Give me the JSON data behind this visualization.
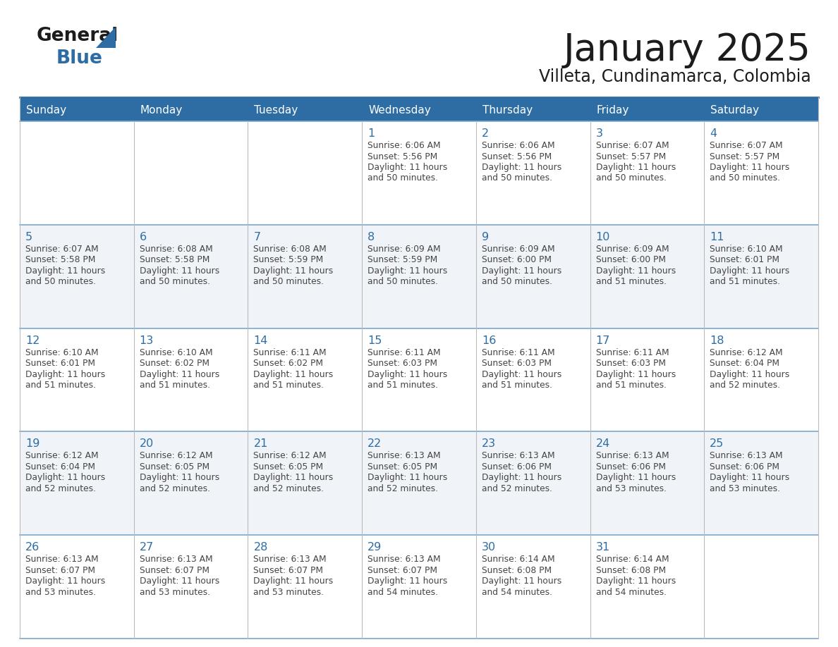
{
  "title": "January 2025",
  "subtitle": "Villeta, Cundinamarca, Colombia",
  "header_bg": "#2E6DA4",
  "header_text_color": "#FFFFFF",
  "cell_bg_even": "#FFFFFF",
  "cell_bg_odd": "#F0F4F8",
  "day_number_color": "#2E6DA4",
  "cell_text_color": "#444444",
  "grid_line_color": "#AAAAAA",
  "header_line_color": "#2E6DA4",
  "days_of_week": [
    "Sunday",
    "Monday",
    "Tuesday",
    "Wednesday",
    "Thursday",
    "Friday",
    "Saturday"
  ],
  "weeks": [
    [
      {
        "day": "",
        "sunrise": "",
        "sunset": "",
        "daylight": ""
      },
      {
        "day": "",
        "sunrise": "",
        "sunset": "",
        "daylight": ""
      },
      {
        "day": "",
        "sunrise": "",
        "sunset": "",
        "daylight": ""
      },
      {
        "day": "1",
        "sunrise": "6:06 AM",
        "sunset": "5:56 PM",
        "daylight": "50 minutes."
      },
      {
        "day": "2",
        "sunrise": "6:06 AM",
        "sunset": "5:56 PM",
        "daylight": "50 minutes."
      },
      {
        "day": "3",
        "sunrise": "6:07 AM",
        "sunset": "5:57 PM",
        "daylight": "50 minutes."
      },
      {
        "day": "4",
        "sunrise": "6:07 AM",
        "sunset": "5:57 PM",
        "daylight": "50 minutes."
      }
    ],
    [
      {
        "day": "5",
        "sunrise": "6:07 AM",
        "sunset": "5:58 PM",
        "daylight": "50 minutes."
      },
      {
        "day": "6",
        "sunrise": "6:08 AM",
        "sunset": "5:58 PM",
        "daylight": "50 minutes."
      },
      {
        "day": "7",
        "sunrise": "6:08 AM",
        "sunset": "5:59 PM",
        "daylight": "50 minutes."
      },
      {
        "day": "8",
        "sunrise": "6:09 AM",
        "sunset": "5:59 PM",
        "daylight": "50 minutes."
      },
      {
        "day": "9",
        "sunrise": "6:09 AM",
        "sunset": "6:00 PM",
        "daylight": "50 minutes."
      },
      {
        "day": "10",
        "sunrise": "6:09 AM",
        "sunset": "6:00 PM",
        "daylight": "51 minutes."
      },
      {
        "day": "11",
        "sunrise": "6:10 AM",
        "sunset": "6:01 PM",
        "daylight": "51 minutes."
      }
    ],
    [
      {
        "day": "12",
        "sunrise": "6:10 AM",
        "sunset": "6:01 PM",
        "daylight": "51 minutes."
      },
      {
        "day": "13",
        "sunrise": "6:10 AM",
        "sunset": "6:02 PM",
        "daylight": "51 minutes."
      },
      {
        "day": "14",
        "sunrise": "6:11 AM",
        "sunset": "6:02 PM",
        "daylight": "51 minutes."
      },
      {
        "day": "15",
        "sunrise": "6:11 AM",
        "sunset": "6:03 PM",
        "daylight": "51 minutes."
      },
      {
        "day": "16",
        "sunrise": "6:11 AM",
        "sunset": "6:03 PM",
        "daylight": "51 minutes."
      },
      {
        "day": "17",
        "sunrise": "6:11 AM",
        "sunset": "6:03 PM",
        "daylight": "51 minutes."
      },
      {
        "day": "18",
        "sunrise": "6:12 AM",
        "sunset": "6:04 PM",
        "daylight": "52 minutes."
      }
    ],
    [
      {
        "day": "19",
        "sunrise": "6:12 AM",
        "sunset": "6:04 PM",
        "daylight": "52 minutes."
      },
      {
        "day": "20",
        "sunrise": "6:12 AM",
        "sunset": "6:05 PM",
        "daylight": "52 minutes."
      },
      {
        "day": "21",
        "sunrise": "6:12 AM",
        "sunset": "6:05 PM",
        "daylight": "52 minutes."
      },
      {
        "day": "22",
        "sunrise": "6:13 AM",
        "sunset": "6:05 PM",
        "daylight": "52 minutes."
      },
      {
        "day": "23",
        "sunrise": "6:13 AM",
        "sunset": "6:06 PM",
        "daylight": "52 minutes."
      },
      {
        "day": "24",
        "sunrise": "6:13 AM",
        "sunset": "6:06 PM",
        "daylight": "53 minutes."
      },
      {
        "day": "25",
        "sunrise": "6:13 AM",
        "sunset": "6:06 PM",
        "daylight": "53 minutes."
      }
    ],
    [
      {
        "day": "26",
        "sunrise": "6:13 AM",
        "sunset": "6:07 PM",
        "daylight": "53 minutes."
      },
      {
        "day": "27",
        "sunrise": "6:13 AM",
        "sunset": "6:07 PM",
        "daylight": "53 minutes."
      },
      {
        "day": "28",
        "sunrise": "6:13 AM",
        "sunset": "6:07 PM",
        "daylight": "53 minutes."
      },
      {
        "day": "29",
        "sunrise": "6:13 AM",
        "sunset": "6:07 PM",
        "daylight": "54 minutes."
      },
      {
        "day": "30",
        "sunrise": "6:14 AM",
        "sunset": "6:08 PM",
        "daylight": "54 minutes."
      },
      {
        "day": "31",
        "sunrise": "6:14 AM",
        "sunset": "6:08 PM",
        "daylight": "54 minutes."
      },
      {
        "day": "",
        "sunrise": "",
        "sunset": "",
        "daylight": ""
      }
    ]
  ]
}
